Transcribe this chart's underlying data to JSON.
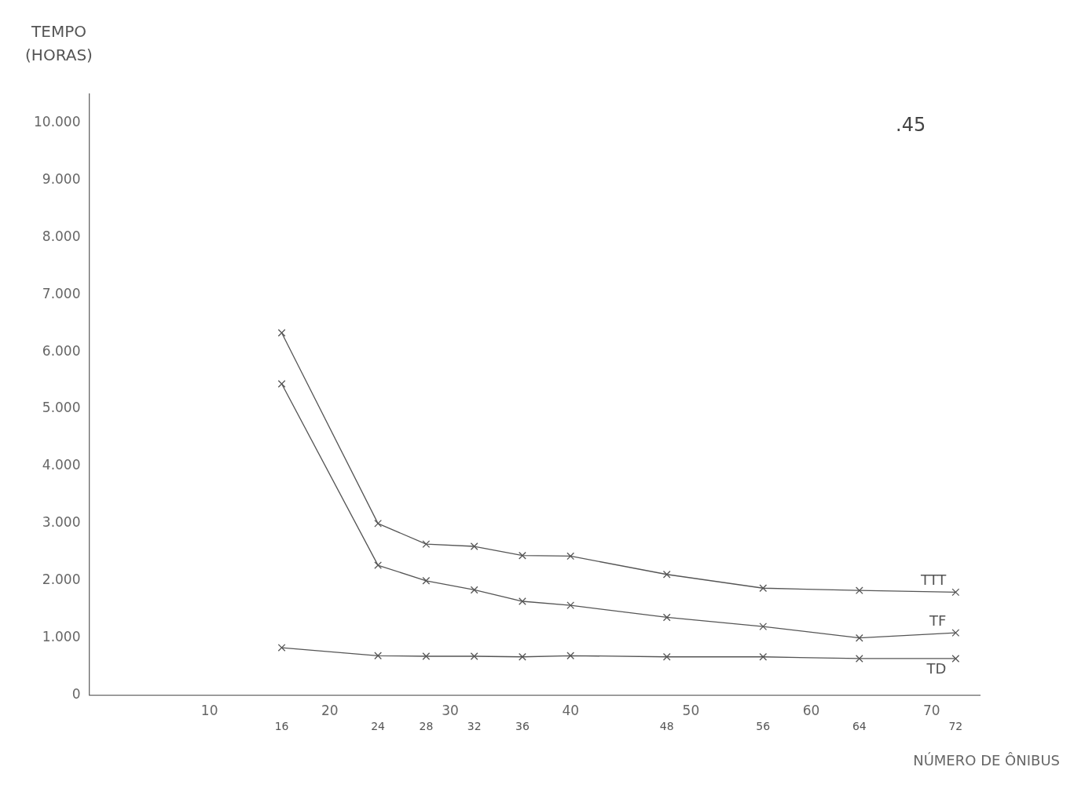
{
  "chart_data": {
    "type": "line",
    "xlabel": "NÚMERO DE ÔNIBUS",
    "ylabel": "TEMPO (HORAS)",
    "xlim": [
      0,
      74
    ],
    "xticks": [
      10,
      20,
      30,
      40,
      50,
      60,
      70
    ],
    "ylim": [
      0,
      10500
    ],
    "yticks": [
      0,
      {
        "value": 1000,
        "label": "1.000"
      },
      {
        "value": 2000,
        "label": "2.000"
      },
      {
        "value": 3000,
        "label": "3.000"
      },
      {
        "value": 4000,
        "label": "4.000"
      },
      {
        "value": 5000,
        "label": "5.000"
      },
      {
        "value": 6000,
        "label": "6.000"
      },
      {
        "value": 7000,
        "label": "7.000"
      },
      {
        "value": 8000,
        "label": "8.000"
      },
      {
        "value": 9000,
        "label": "9.000"
      },
      {
        "value": 10000,
        "label": "10.000"
      }
    ],
    "x": [
      16,
      24,
      28,
      32,
      36,
      40,
      48,
      56,
      64,
      72
    ],
    "series": [
      {
        "name": "TTT",
        "color": "#555555",
        "values": [
          6330,
          3000,
          2640,
          2600,
          2440,
          2430,
          2110,
          1870,
          1830,
          1800
        ]
      },
      {
        "name": "TF",
        "color": "#555555",
        "values": [
          5440,
          2270,
          2000,
          1840,
          1640,
          1570,
          1360,
          1200,
          1000,
          1090
        ]
      },
      {
        "name": "TD",
        "color": "#555555",
        "values": [
          830,
          690,
          680,
          680,
          670,
          690,
          670,
          670,
          640,
          640
        ]
      }
    ],
    "marker": "cross",
    "line_style": "solid",
    "grid": false,
    "legend": false,
    "annotations": [
      ".45",
      "16",
      "24",
      "28",
      "32",
      "36",
      "48",
      "56",
      "64",
      "72"
    ]
  }
}
